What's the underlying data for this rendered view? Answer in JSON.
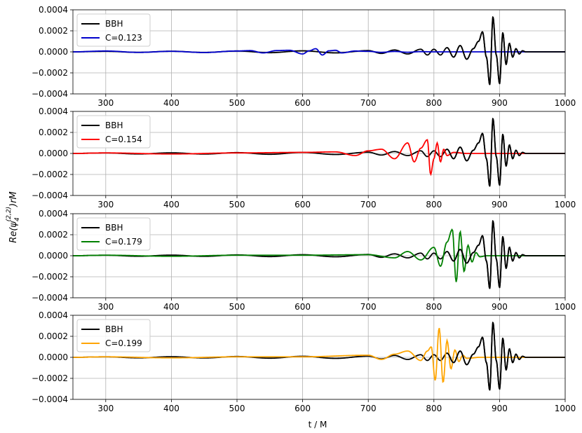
{
  "figure": {
    "xlabel": "t / M",
    "ylabel": {
      "prefix": "Re(ψ",
      "sub": "4",
      "sup": "(2,2)",
      "suffix": ")rM"
    }
  },
  "chart_data": [
    {
      "type": "line",
      "xlim": [
        250,
        1000
      ],
      "ylim": [
        -0.0004,
        0.0004
      ],
      "xticks": [
        "300",
        "400",
        "500",
        "600",
        "700",
        "800",
        "900",
        "1000"
      ],
      "yticks": [
        "0.0004",
        "0.0002",
        "0.0000",
        "−0.0002",
        "−0.0004"
      ],
      "grid": true,
      "legend_position": "upper-left",
      "series": [
        {
          "name": "BBH",
          "color": "#000000"
        },
        {
          "name": "C=0.123",
          "color": "#0000cc",
          "x": [
            250,
            300,
            350,
            400,
            450,
            500,
            520,
            540,
            560,
            580,
            600,
            610,
            620,
            630,
            640,
            650,
            660,
            680,
            700,
            720,
            740,
            760,
            780,
            800,
            850,
            900,
            950,
            1000
          ],
          "y": [
            0,
            8e-06,
            -5e-06,
            5e-06,
            -6e-06,
            8e-06,
            1.2e-05,
            -1e-05,
            1.2e-05,
            1.5e-05,
            -2e-05,
            1e-05,
            3e-05,
            -3e-05,
            1e-05,
            1.5e-05,
            -1e-05,
            8e-06,
            5e-06,
            -5e-06,
            4e-06,
            -4e-06,
            2e-06,
            0,
            0,
            0,
            0,
            0
          ]
        }
      ]
    },
    {
      "type": "line",
      "xlim": [
        250,
        1000
      ],
      "ylim": [
        -0.0004,
        0.0004
      ],
      "xticks": [
        "300",
        "400",
        "500",
        "600",
        "700",
        "800",
        "900",
        "1000"
      ],
      "yticks": [
        "0.0004",
        "0.0002",
        "0.0000",
        "−0.0002",
        "−0.0004"
      ],
      "grid": true,
      "legend_position": "upper-left",
      "series": [
        {
          "name": "BBH",
          "color": "#000000"
        },
        {
          "name": "C=0.154",
          "color": "#ff0000",
          "x": [
            250,
            300,
            400,
            500,
            600,
            650,
            680,
            700,
            720,
            740,
            760,
            770,
            780,
            790,
            795,
            800,
            805,
            810,
            815,
            820,
            830,
            850,
            900,
            1000
          ],
          "y": [
            0,
            5e-06,
            -5e-06,
            5e-06,
            1e-05,
            1.5e-05,
            -2e-05,
            2.5e-05,
            4e-05,
            -5e-05,
            0.0001,
            -8e-05,
            5e-05,
            0.00013,
            -0.0002,
            -5e-05,
            0.0001,
            -8e-05,
            4e-05,
            -2e-05,
            1e-05,
            0,
            0,
            0
          ]
        }
      ]
    },
    {
      "type": "line",
      "xlim": [
        250,
        1000
      ],
      "ylim": [
        -0.0004,
        0.0004
      ],
      "xticks": [
        "300",
        "400",
        "500",
        "600",
        "700",
        "800",
        "900",
        "1000"
      ],
      "yticks": [
        "0.0004",
        "0.0002",
        "0.0000",
        "−0.0002",
        "−0.0004"
      ],
      "grid": true,
      "legend_position": "upper-left",
      "series": [
        {
          "name": "BBH",
          "color": "#000000"
        },
        {
          "name": "C=0.179",
          "color": "#008000",
          "x": [
            250,
            300,
            400,
            500,
            600,
            700,
            740,
            760,
            780,
            800,
            810,
            820,
            828,
            834,
            840,
            846,
            852,
            858,
            864,
            870,
            880,
            900,
            1000
          ],
          "y": [
            0,
            5e-06,
            -5e-06,
            5e-06,
            5e-06,
            1e-05,
            -2e-05,
            4e-05,
            -4e-05,
            8e-05,
            -0.0001,
            0.00013,
            0.00025,
            -0.00025,
            0.00023,
            -0.00015,
            0.0001,
            -6e-05,
            3e-05,
            -1e-05,
            0,
            0,
            0
          ]
        }
      ]
    },
    {
      "type": "line",
      "xlim": [
        250,
        1000
      ],
      "ylim": [
        -0.0004,
        0.0004
      ],
      "xticks": [
        "300",
        "400",
        "500",
        "600",
        "700",
        "800",
        "900",
        "1000"
      ],
      "yticks": [
        "0.0004",
        "0.0002",
        "0.0000",
        "−0.0002",
        "−0.0004"
      ],
      "grid": true,
      "legend_position": "upper-left",
      "series": [
        {
          "name": "BBH",
          "color": "#000000"
        },
        {
          "name": "C=0.199",
          "color": "#ffa500",
          "x": [
            250,
            300,
            400,
            500,
            600,
            700,
            720,
            740,
            760,
            780,
            790,
            796,
            802,
            808,
            814,
            820,
            826,
            832,
            838,
            844,
            850,
            870,
            1000
          ],
          "y": [
            0,
            5e-06,
            -5e-06,
            5e-06,
            5e-06,
            2e-05,
            -2e-05,
            3e-05,
            6e-05,
            -3e-05,
            6e-05,
            0.0001,
            -0.00022,
            0.00028,
            -0.00024,
            0.00016,
            -0.00011,
            7e-05,
            -4e-05,
            2e-05,
            -1e-05,
            0,
            0
          ]
        }
      ]
    }
  ],
  "bbh_waveform": {
    "x": [
      250,
      300,
      350,
      400,
      450,
      500,
      550,
      600,
      650,
      700,
      720,
      740,
      760,
      780,
      790,
      800,
      810,
      820,
      830,
      840,
      850,
      860,
      868,
      874,
      880,
      885,
      890,
      895,
      900,
      905,
      910,
      915,
      920,
      925,
      930,
      935,
      940,
      950,
      1000
    ],
    "y": [
      0,
      5e-06,
      -5e-06,
      6e-06,
      -6e-06,
      8e-06,
      -8e-06,
      1e-05,
      -1e-05,
      1.2e-05,
      -1.5e-05,
      1.8e-05,
      -2e-05,
      2.5e-05,
      -3e-05,
      2.5e-05,
      -3e-05,
      4e-05,
      -5e-05,
      6e-05,
      -7e-05,
      3e-05,
      0.0001,
      0.00019,
      -5e-05,
      -0.00031,
      0.00033,
      -3e-05,
      -0.0003,
      0.00018,
      -0.00012,
      8e-05,
      -5e-05,
      3e-05,
      -2e-05,
      1e-05,
      0,
      0,
      0
    ]
  }
}
